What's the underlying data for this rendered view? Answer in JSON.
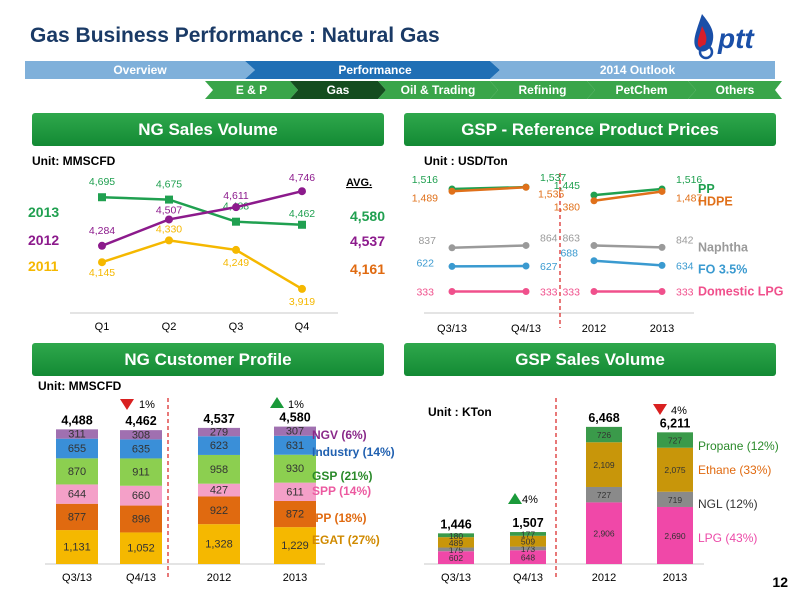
{
  "title": "Gas Business Performance : Natural Gas",
  "logo_text": "pttt",
  "logo_wordmark": "ptt",
  "page_number": "12",
  "nav": {
    "top": [
      {
        "label": "Overview",
        "active": false
      },
      {
        "label": "Performance",
        "active": true
      },
      {
        "label": "2014 Outlook",
        "active": false
      }
    ],
    "sub": [
      {
        "label": "E & P",
        "active": false
      },
      {
        "label": "Gas",
        "active": true
      },
      {
        "label": "Oil & Trading",
        "active": false
      },
      {
        "label": "Refining",
        "active": false
      },
      {
        "label": "PetChem",
        "active": false
      },
      {
        "label": "Others",
        "active": false
      }
    ]
  },
  "colors": {
    "nav_light": "#7fb0da",
    "nav_active": "#1f6fb5",
    "sub_green": "#3aa54a",
    "sub_active": "#154d1f",
    "header_green": "#1e9a3e",
    "arrow_red": "#d92020",
    "arrow_green": "#1a9a3a"
  },
  "sections": {
    "ng_sales": "NG Sales Volume",
    "gsp_prices": "GSP - Reference Product Prices",
    "ng_customer": "NG Customer Profile",
    "gsp_sales": "GSP Sales Volume"
  },
  "chart_data": [
    {
      "id": "ng-sales-volume",
      "type": "line",
      "unit": "Unit: MMSCFD",
      "categories": [
        "Q1",
        "Q2",
        "Q3",
        "Q4"
      ],
      "avg_title": "AVG.",
      "series": [
        {
          "name": "2013",
          "values": [
            4695,
            4675,
            4488,
            4462
          ],
          "labels": [
            "4,695",
            "4,675",
            "4,488",
            "4,462"
          ],
          "avg": "4,580",
          "color": "#20a050"
        },
        {
          "name": "2012",
          "values": [
            4284,
            4507,
            4611,
            4746
          ],
          "labels": [
            "4,284",
            "4,507",
            "4,611",
            "4,746"
          ],
          "avg": "4,537",
          "color": "#8c1a8c"
        },
        {
          "name": "2011",
          "values": [
            4145,
            4330,
            4249,
            3919
          ],
          "labels": [
            "4,145",
            "4,330",
            "4,249",
            "3,919"
          ],
          "avg": "4,161",
          "color": "#f5b800"
        }
      ]
    },
    {
      "id": "gsp-reference-prices",
      "type": "line",
      "unit": "Unit : USD/Ton",
      "categories": [
        "Q3/13",
        "Q4/13",
        "2012",
        "2013"
      ],
      "series": [
        {
          "name": "PP",
          "values": [
            1516,
            1537,
            1445,
            1516
          ],
          "labels": [
            "1,516",
            "1,537",
            "1,445",
            "1,516"
          ],
          "color": "#20a050"
        },
        {
          "name": "HDPE",
          "values": [
            1489,
            1535,
            1380,
            1487
          ],
          "labels": [
            "1,489",
            "1,535",
            "1,380",
            "1,487"
          ],
          "color": "#e0701a"
        },
        {
          "name": "Naphtha",
          "values": [
            837,
            864,
            863,
            842
          ],
          "labels": [
            "837",
            "864",
            "863",
            "842"
          ],
          "color": "#9a9a9a"
        },
        {
          "name": "FO 3.5%",
          "values": [
            622,
            627,
            688,
            634
          ],
          "labels": [
            "622",
            "627",
            "688",
            "634"
          ],
          "color": "#3a9ad0"
        },
        {
          "name": "Domestic LPG",
          "values": [
            333,
            333,
            333,
            333
          ],
          "labels": [
            "333",
            "333",
            "333",
            "333"
          ],
          "color": "#f0508c"
        }
      ]
    },
    {
      "id": "ng-customer-profile",
      "type": "bar",
      "stacked": true,
      "unit": "Unit: MMSCFD",
      "categories": [
        "Q3/13",
        "Q4/13",
        "2012",
        "2013"
      ],
      "totals": [
        "4,488",
        "4,462",
        "4,537",
        "4,580"
      ],
      "change_down": "1%",
      "change_up": "1%",
      "series": [
        {
          "name": "EGAT (27%)",
          "values": [
            1131,
            1052,
            1328,
            1229
          ],
          "labels": [
            "1,131",
            "1,052",
            "1,328",
            "1,229"
          ],
          "color": "#f5b800",
          "text_color": "#d08a00"
        },
        {
          "name": "IPP (18%)",
          "values": [
            877,
            896,
            922,
            872
          ],
          "labels": [
            "877",
            "896",
            "922",
            "872"
          ],
          "color": "#e06a10",
          "text_color": "#e06a10"
        },
        {
          "name": "SPP (14%)",
          "values": [
            644,
            660,
            427,
            611
          ],
          "labels": [
            "644",
            "660",
            "427",
            "611"
          ],
          "color": "#f4a0c8",
          "text_color": "#ec5aa0"
        },
        {
          "name": "GSP (21%)",
          "values": [
            870,
            911,
            958,
            930
          ],
          "labels": [
            "870",
            "911",
            "958",
            "930"
          ],
          "color": "#8ccf50",
          "text_color": "#2a8a2a"
        },
        {
          "name": "Industry (14%)",
          "values": [
            655,
            635,
            623,
            631
          ],
          "labels": [
            "655",
            "635",
            "623",
            "631"
          ],
          "color": "#3a8fd8",
          "text_color": "#2060b0"
        },
        {
          "name": "NGV (6%)",
          "values": [
            311,
            308,
            279,
            307
          ],
          "labels": [
            "311",
            "308",
            "279",
            "307"
          ],
          "color": "#a070b0",
          "text_color": "#8a2a8a"
        }
      ]
    },
    {
      "id": "gsp-sales-volume",
      "type": "bar",
      "stacked": true,
      "unit": "Unit : KTon",
      "categories": [
        "Q3/13",
        "Q4/13",
        "2012",
        "2013"
      ],
      "totals": [
        "1,446",
        "1,507",
        "6,468",
        "6,211"
      ],
      "change_up": "4%",
      "change_down": "4%",
      "series": [
        {
          "name": "LPG (43%)",
          "values": [
            602,
            648,
            2906,
            2690
          ],
          "labels": [
            "602",
            "648",
            "2,906",
            "2,690"
          ],
          "color": "#f048a8",
          "text_color": "#ec4aa8"
        },
        {
          "name": "NGL (12%)",
          "values": [
            175,
            173,
            727,
            719
          ],
          "labels": [
            "175",
            "173",
            "727",
            "719"
          ],
          "color": "#8a8a8a",
          "text_color": "#333333"
        },
        {
          "name": "Ethane (33%)",
          "values": [
            489,
            509,
            2109,
            2075
          ],
          "labels": [
            "489",
            "509",
            "2,109",
            "2,075"
          ],
          "color": "#c8960a",
          "text_color": "#e06a10"
        },
        {
          "name": "Propane (12%)",
          "values": [
            180,
            177,
            726,
            727
          ],
          "labels": [
            "180",
            "177",
            "726",
            "727"
          ],
          "color": "#3a9a4a",
          "text_color": "#2a8a2a"
        }
      ]
    }
  ]
}
